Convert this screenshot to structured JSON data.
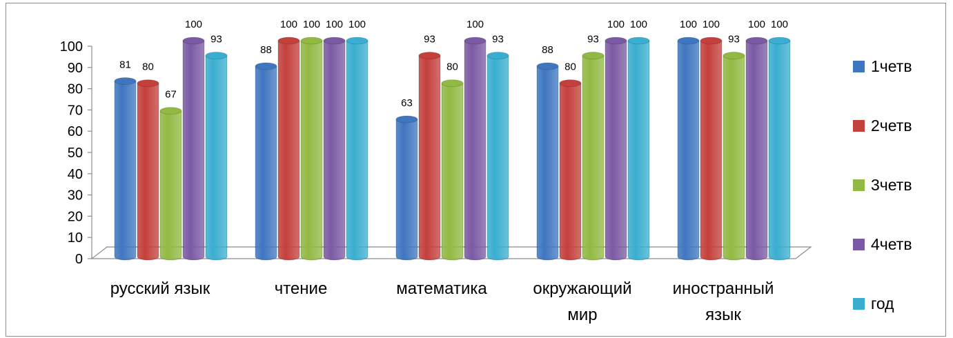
{
  "chart_data": {
    "type": "bar",
    "categories": [
      "русский язык",
      "чтение",
      "математика",
      "окружающий мир",
      "иностранный язык"
    ],
    "category_lines": [
      [
        "русский язык"
      ],
      [
        "чтение"
      ],
      [
        "математика"
      ],
      [
        "окружающий",
        "мир"
      ],
      [
        "иностранный",
        "язык"
      ]
    ],
    "series": [
      {
        "name": "1четв",
        "color": "#3f76c0",
        "values": [
          81,
          88,
          63,
          88,
          100
        ]
      },
      {
        "name": "2четв",
        "color": "#c4403c",
        "values": [
          80,
          100,
          93,
          80,
          100
        ]
      },
      {
        "name": "3четв",
        "color": "#92b943",
        "values": [
          67,
          100,
          80,
          93,
          93
        ]
      },
      {
        "name": "4четв",
        "color": "#7b5aa4",
        "values": [
          100,
          100,
          100,
          100,
          100
        ]
      },
      {
        "name": "год",
        "color": "#3aaed0",
        "values": [
          93,
          100,
          93,
          100,
          100
        ]
      }
    ],
    "ylim": [
      0,
      100
    ],
    "yticks": [
      "0",
      "10",
      "20",
      "30",
      "40",
      "50",
      "60",
      "70",
      "80",
      "90",
      "100"
    ],
    "legend_position": "right",
    "grid": false
  }
}
